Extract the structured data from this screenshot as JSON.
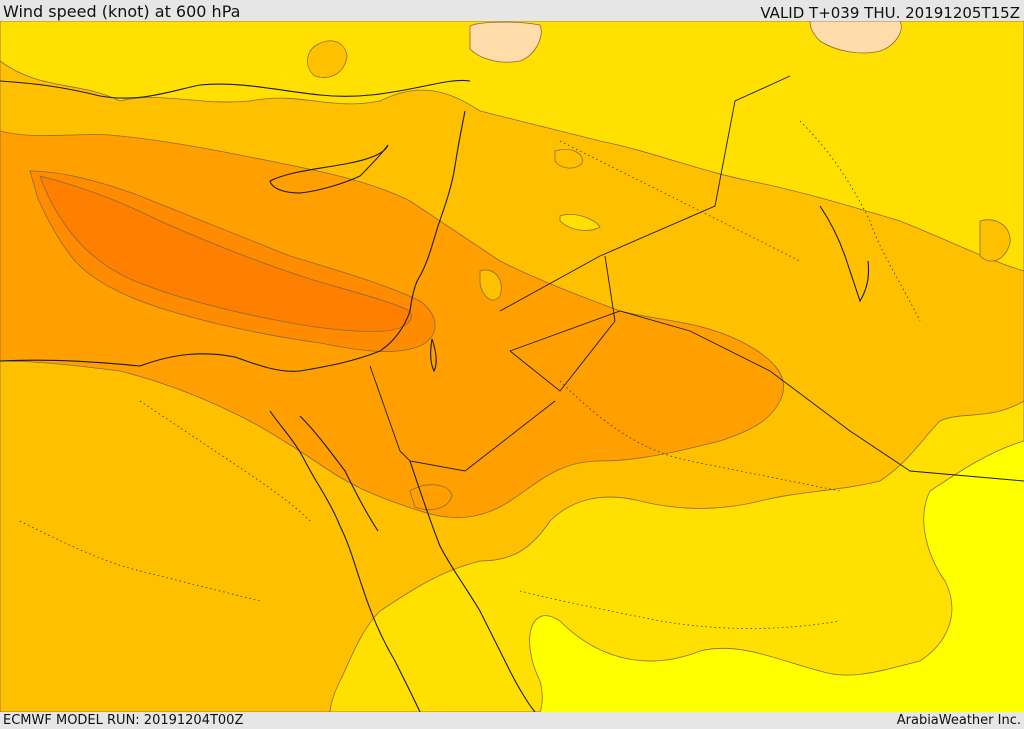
{
  "header": {
    "title": "Wind speed (knot) at 600 hPa",
    "valid": "VALID T+039 THU. 20191205T15Z"
  },
  "footer": {
    "model_run": "ECMWF MODEL RUN: 20191204T00Z",
    "credit": "ArabiaWeather Inc."
  },
  "map": {
    "field": "wind speed 600 hPa",
    "color_bands": [
      "#ffff00",
      "#ffe000",
      "#ffc000",
      "#ff9f00",
      "#ff8c00",
      "#ff7f00",
      "#ffdcaa",
      "#ffe6c8"
    ]
  }
}
